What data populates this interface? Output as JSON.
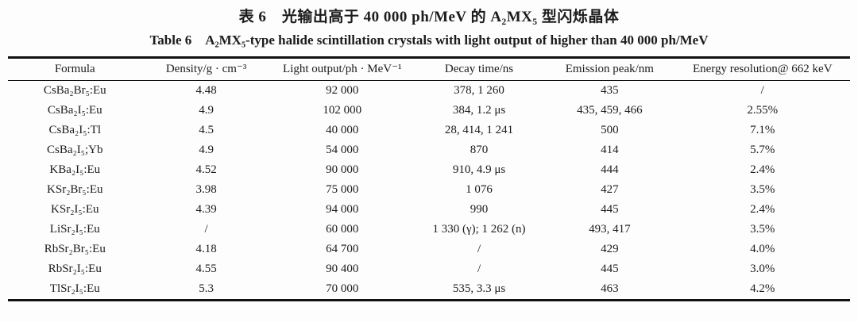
{
  "page": {
    "background": "#fdfdfd",
    "text_color": "#1c1c1c",
    "rule_color": "#111111"
  },
  "captions": {
    "chinese": "表 6　光输出高于 40 000 ph/MeV 的 A₂MX₅ 型闪烁晶体",
    "english": "Table 6　A₂MX₅-type halide scintillation crystals with light output of higher than 40 000 ph/MeV"
  },
  "table": {
    "columns": [
      "Formula",
      "Density/g · cm⁻³",
      "Light output/ph · MeV⁻¹",
      "Decay time/ns",
      "Emission peak/nm",
      "Energy resolution@ 662 keV"
    ],
    "rows": [
      [
        "CsBa₂Br₅:Eu",
        "4.48",
        "92 000",
        "378, 1 260",
        "435",
        "/"
      ],
      [
        "CsBa₂I₅:Eu",
        "4.9",
        "102 000",
        "384, 1.2 μs",
        "435, 459, 466",
        "2.55%"
      ],
      [
        "CsBa₂I₅:Tl",
        "4.5",
        "40 000",
        "28, 414, 1 241",
        "500",
        "7.1%"
      ],
      [
        "CsBa₂I₅;Yb",
        "4.9",
        "54 000",
        "870",
        "414",
        "5.7%"
      ],
      [
        "KBa₂I₅:Eu",
        "4.52",
        "90 000",
        "910, 4.9 μs",
        "444",
        "2.4%"
      ],
      [
        "KSr₂Br₅:Eu",
        "3.98",
        "75 000",
        "1 076",
        "427",
        "3.5%"
      ],
      [
        "KSr₂I₅:Eu",
        "4.39",
        "94 000",
        "990",
        "445",
        "2.4%"
      ],
      [
        "LiSr₂I₅:Eu",
        "/",
        "60 000",
        "1 330 (γ); 1 262 (n)",
        "493, 417",
        "3.5%"
      ],
      [
        "RbSr₂Br₅:Eu",
        "4.18",
        "64 700",
        "/",
        "429",
        "4.0%"
      ],
      [
        "RbSr₂I₅:Eu",
        "4.55",
        "90 400",
        "/",
        "445",
        "3.0%"
      ],
      [
        "TlSr₂I₅:Eu",
        "5.3",
        "70 000",
        "535, 3.3 μs",
        "463",
        "4.2%"
      ]
    ]
  }
}
